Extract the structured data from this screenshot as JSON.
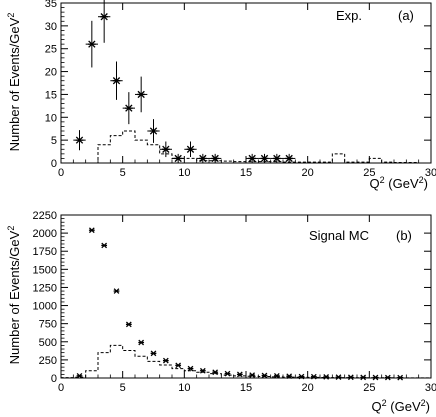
{
  "chart_data": [
    {
      "type": "scatter",
      "panel_label": "(a)",
      "xlabel": "Q",
      "xlabel_sup": "2",
      "xlabel_unit": " (GeV",
      "xlabel_unit_sup": "2",
      "xlabel_close": ")",
      "ylabel": "Number of Events/GeV",
      "ylabel_sup": "2",
      "xlim": [
        0,
        30
      ],
      "ylim": [
        0,
        35
      ],
      "xticks": [
        "0",
        "5",
        "10",
        "15",
        "20",
        "25",
        "30"
      ],
      "yticks": [
        "0",
        "5",
        "10",
        "15",
        "20",
        "25",
        "30",
        "35"
      ],
      "series": [
        {
          "name": "Exp.",
          "style": "points-with-errors",
          "x": [
            1.5,
            2.5,
            3.5,
            4.5,
            5.5,
            6.5,
            7.5,
            8.5,
            9.5,
            10.5,
            11.5,
            12.5,
            15.5,
            16.5,
            17.5,
            18.5
          ],
          "y": [
            5,
            26,
            32,
            18,
            12,
            15,
            7,
            3,
            1,
            3,
            1,
            1,
            1,
            1,
            1,
            1
          ],
          "yerr": [
            2.2,
            5.1,
            5.7,
            4.2,
            3.5,
            3.9,
            2.6,
            1.7,
            1,
            1.7,
            1,
            1,
            1,
            1,
            1,
            1
          ]
        },
        {
          "style": "histogram-dashed",
          "edges": [
            0,
            1,
            2,
            3,
            4,
            5,
            6,
            7,
            8,
            9,
            10,
            11,
            12,
            13,
            14,
            15,
            16,
            17,
            18,
            19,
            20,
            21,
            22,
            23,
            24,
            25,
            26,
            27,
            28,
            29,
            30
          ],
          "values": [
            0,
            0,
            0,
            4,
            6,
            7,
            5,
            4,
            2,
            1,
            1,
            0.5,
            0.5,
            0.4,
            0.3,
            0.3,
            0.3,
            0.3,
            0.2,
            0.2,
            0.2,
            0.2,
            2,
            0.2,
            0.2,
            1,
            0.2,
            0.1,
            0.1,
            0
          ]
        }
      ]
    },
    {
      "type": "scatter",
      "panel_label": "(b)",
      "xlabel": "Q",
      "xlabel_sup": "2",
      "xlabel_unit": " (GeV",
      "xlabel_unit_sup": "2",
      "xlabel_close": ")",
      "ylabel": "Number of Events/GeV",
      "ylabel_sup": "2",
      "xlim": [
        0,
        30
      ],
      "ylim": [
        0,
        2250
      ],
      "xticks": [
        "0",
        "5",
        "10",
        "15",
        "20",
        "25",
        "30"
      ],
      "yticks": [
        "0",
        "250",
        "500",
        "750",
        "1000",
        "1250",
        "1500",
        "1750",
        "2000",
        "2250"
      ],
      "series": [
        {
          "name": "Signal MC",
          "style": "points",
          "x": [
            1.5,
            2.5,
            3.5,
            4.5,
            5.5,
            6.5,
            7.5,
            8.5,
            9.5,
            10.5,
            11.5,
            12.5,
            13.5,
            14.5,
            15.5,
            16.5,
            17.5,
            18.5,
            19.5,
            20.5,
            21.5,
            22.5,
            23.5,
            24.5,
            25.5,
            26.5,
            27.5
          ],
          "y": [
            30,
            2040,
            1830,
            1200,
            740,
            490,
            340,
            240,
            175,
            130,
            100,
            80,
            60,
            50,
            40,
            35,
            30,
            25,
            20,
            18,
            15,
            12,
            10,
            8,
            7,
            6,
            5
          ]
        },
        {
          "style": "histogram-dashed",
          "edges": [
            0,
            1,
            2,
            3,
            4,
            5,
            6,
            7,
            8,
            9,
            10,
            11,
            12,
            13,
            14,
            15,
            16,
            17,
            18,
            19,
            20,
            21,
            22,
            23,
            24,
            25,
            26,
            27,
            28,
            29,
            30
          ],
          "values": [
            5,
            10,
            100,
            350,
            450,
            380,
            300,
            230,
            180,
            130,
            100,
            80,
            60,
            40,
            30,
            25,
            20,
            15,
            12,
            10,
            8,
            7,
            6,
            5,
            4,
            3,
            3,
            2,
            2,
            1
          ]
        }
      ]
    }
  ]
}
